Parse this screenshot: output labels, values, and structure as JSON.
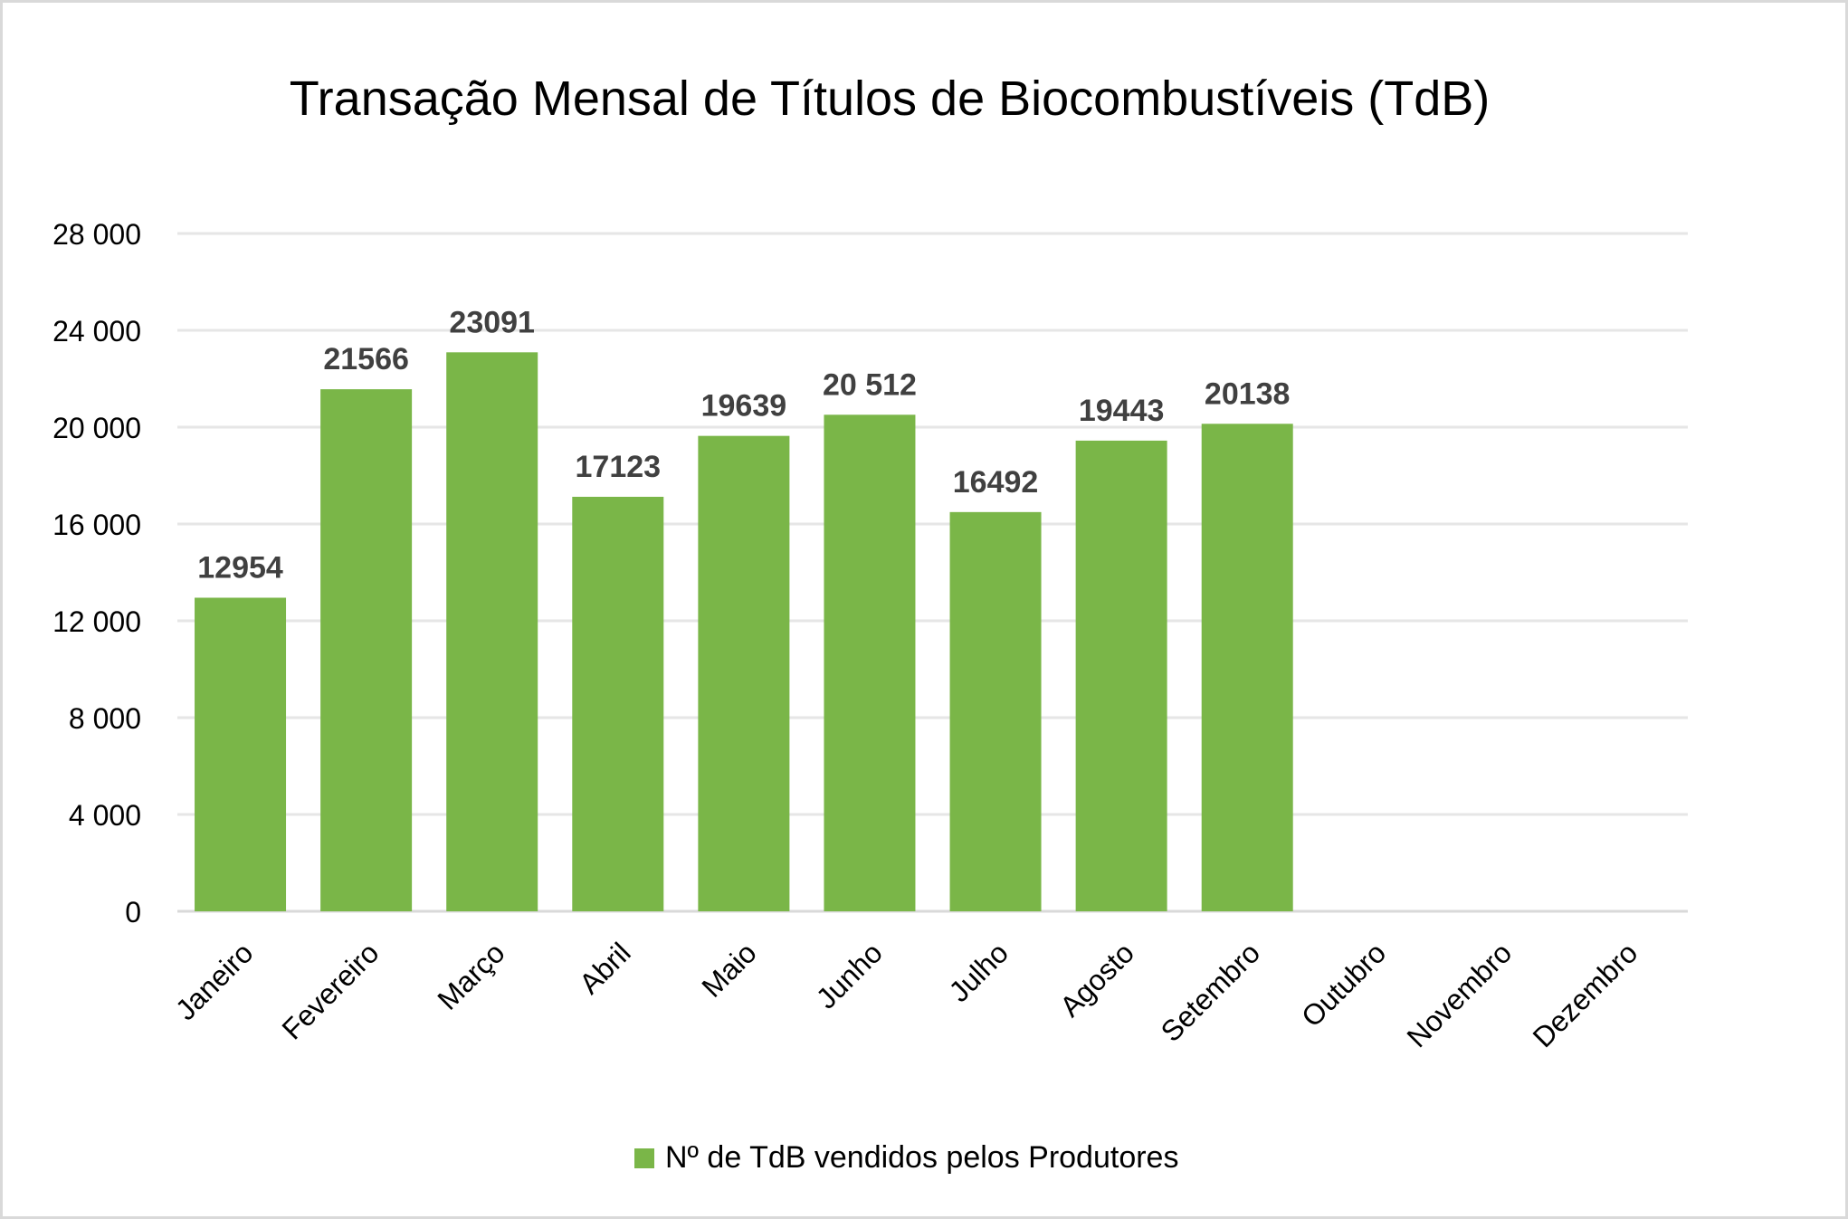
{
  "chart_data": {
    "type": "bar",
    "title": "Transação Mensal de Títulos de Biocombustíveis (TdB)",
    "categories": [
      "Janeiro",
      "Fevereiro",
      "Março",
      "Abril",
      "Maio",
      "Junho",
      "Julho",
      "Agosto",
      "Setembro",
      "Outubro",
      "Novembro",
      "Dezembro"
    ],
    "series": [
      {
        "name": "Nº de TdB vendidos pelos Produtores",
        "values": [
          12954,
          21566,
          23091,
          17123,
          19639,
          20512,
          16492,
          19443,
          20138,
          null,
          null,
          null
        ],
        "data_labels": [
          "12954",
          "21566",
          "23091",
          "17123",
          "19639",
          "20 512",
          "16492",
          "19443",
          "20138",
          "",
          "",
          ""
        ],
        "color": "#7ab648"
      }
    ],
    "ylim": [
      0,
      28000
    ],
    "yticks": [
      0,
      4000,
      8000,
      12000,
      16000,
      20000,
      24000,
      28000
    ],
    "ytick_labels": [
      "0",
      "4 000",
      "8 000",
      "12 000",
      "16 000",
      "20 000",
      "24 000",
      "28 000"
    ],
    "xlabel": "",
    "ylabel": "",
    "grid": true,
    "legend_position": "bottom",
    "colors": {
      "bar": "#7ab648",
      "grid": "#e6e6e6",
      "axis": "#d9d9d9",
      "label": "#404040"
    }
  }
}
